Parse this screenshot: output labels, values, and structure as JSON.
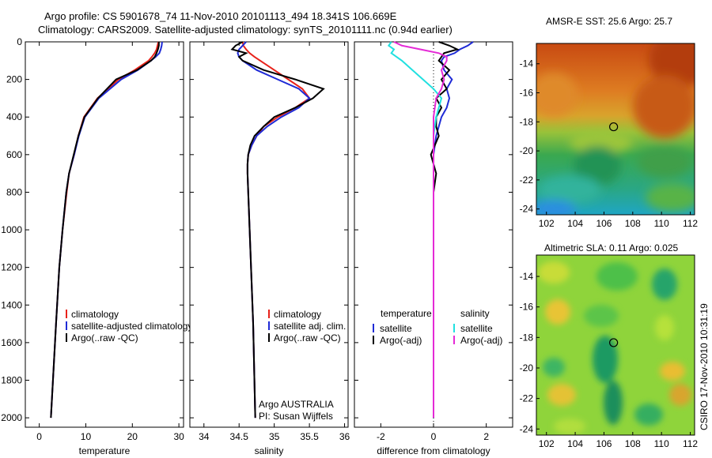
{
  "header": {
    "title_line1": "Argo profile: CS 5901678_74 11-Nov-2010 20101113_494 18.341S 106.669E",
    "title_line2": "Climatology: CARS2009. Satellite-adjusted climatology: synTS_20101111.nc (0.94d earlier)"
  },
  "side_label": "CSIRO 17-Nov-2010 10:31:19",
  "colors": {
    "red": "#e8221a",
    "blue": "#1f2bd6",
    "black": "#000000",
    "cyan": "#21e0e0",
    "magenta": "#e52ad6"
  },
  "chart_data": [
    {
      "id": "temperature",
      "type": "line",
      "xlabel": "temperature",
      "ylabel": "",
      "xlim": [
        -3,
        31
      ],
      "ylim": [
        2050,
        0
      ],
      "xticks": [
        0,
        10,
        20,
        30
      ],
      "yticks": [
        0,
        200,
        400,
        600,
        800,
        1000,
        1200,
        1400,
        1600,
        1800,
        2000
      ],
      "depth": [
        0,
        20,
        40,
        60,
        80,
        100,
        150,
        200,
        300,
        400,
        500,
        600,
        700,
        800,
        1000,
        1200,
        1500,
        2000
      ],
      "series": [
        {
          "name": "climatology",
          "color": "red",
          "values": [
            25.6,
            25.4,
            25.2,
            24.8,
            24.2,
            23.5,
            20.5,
            17.0,
            12.5,
            9.6,
            8.4,
            7.5,
            6.4,
            5.9,
            5.0,
            4.3,
            3.6,
            2.5
          ]
        },
        {
          "name": "satellite-adjusted climatology",
          "color": "blue",
          "values": [
            26.4,
            26.3,
            26.1,
            25.8,
            25.0,
            24.0,
            21.2,
            17.6,
            12.8,
            9.8,
            8.5,
            7.5,
            6.4,
            5.8,
            5.0,
            4.3,
            3.6,
            2.5
          ]
        },
        {
          "name": "Argo(..raw -QC)",
          "color": "black",
          "values": [
            25.7,
            25.7,
            25.5,
            25.2,
            24.8,
            24.0,
            21.0,
            16.5,
            12.6,
            9.7,
            8.4,
            7.4,
            6.4,
            5.8,
            5.0,
            4.3,
            3.6,
            2.5
          ]
        }
      ]
    },
    {
      "id": "salinity",
      "type": "line",
      "xlabel": "salinity",
      "ylabel": "",
      "xlim": [
        33.8,
        36.05
      ],
      "ylim": [
        2050,
        0
      ],
      "xticks": [
        34,
        34.5,
        35,
        35.5,
        36
      ],
      "depth": [
        0,
        20,
        40,
        60,
        80,
        100,
        150,
        200,
        250,
        300,
        350,
        400,
        450,
        500,
        550,
        600,
        650,
        700,
        800,
        1000,
        1500,
        2000
      ],
      "series": [
        {
          "name": "climatology",
          "color": "red",
          "values": [
            34.55,
            34.56,
            34.6,
            34.65,
            34.72,
            34.8,
            35.0,
            35.2,
            35.4,
            35.5,
            35.3,
            35.05,
            34.85,
            34.75,
            34.68,
            34.63,
            34.62,
            34.62,
            34.63,
            34.65,
            34.7,
            34.73
          ]
        },
        {
          "name": "satellite adj. clim.",
          "color": "blue",
          "values": [
            34.6,
            34.55,
            34.5,
            34.48,
            34.5,
            34.55,
            34.75,
            35.05,
            35.35,
            35.5,
            35.35,
            35.1,
            34.9,
            34.75,
            34.68,
            34.63,
            34.62,
            34.62,
            34.63,
            34.65,
            34.7,
            34.73
          ]
        },
        {
          "name": "Argo(..raw -QC)",
          "color": "black",
          "values": [
            34.55,
            34.45,
            34.4,
            34.6,
            34.5,
            34.55,
            34.85,
            35.3,
            35.7,
            35.55,
            35.3,
            35.0,
            34.85,
            34.72,
            34.66,
            34.63,
            34.62,
            34.62,
            34.63,
            34.65,
            34.7,
            34.73
          ]
        }
      ],
      "annotations": [
        "Argo AUSTRALIA",
        "PI: Susan Wijffels"
      ]
    },
    {
      "id": "difference",
      "type": "line",
      "xlabel": "difference from climatology",
      "ylabel": "",
      "xlim": [
        -3,
        3
      ],
      "ylim": [
        2050,
        0
      ],
      "xticks": [
        -2,
        0,
        2
      ],
      "depth": [
        0,
        20,
        40,
        60,
        80,
        100,
        150,
        200,
        250,
        300,
        350,
        400,
        450,
        500,
        600,
        700,
        800,
        1000,
        1200,
        1500,
        2000
      ],
      "series": [
        {
          "name": "temperature satellite",
          "color": "blue",
          "values": [
            1.5,
            1.3,
            1.0,
            0.8,
            0.4,
            0.3,
            0.4,
            0.7,
            0.5,
            0.6,
            0.5,
            0.3,
            0.2,
            0.1,
            0.0,
            0.0,
            0.0,
            0.0,
            0.0,
            0.0,
            0.0
          ]
        },
        {
          "name": "temperature Argo(-adj)",
          "color": "black",
          "values": [
            0.2,
            0.6,
            0.9,
            0.4,
            0.3,
            0.2,
            0.6,
            0.3,
            0.5,
            0.1,
            0.3,
            0.1,
            0.1,
            0.2,
            -0.1,
            0.1,
            0.0,
            0.0,
            0.0,
            0.0,
            0.0
          ]
        },
        {
          "name": "salinity satellite",
          "color": "cyan",
          "values": [
            -1.6,
            -1.7,
            -1.5,
            -1.6,
            -1.4,
            -1.2,
            -0.8,
            -0.4,
            0.0,
            0.3,
            0.2,
            0.1,
            0.05,
            0.0,
            0.0,
            0.0,
            0.0,
            0.0,
            0.0,
            0.0,
            0.0
          ]
        },
        {
          "name": "salinity Argo(-adj)",
          "color": "magenta",
          "values": [
            -1.5,
            -1.2,
            -0.5,
            0.2,
            0.5,
            0.5,
            0.3,
            0.4,
            0.3,
            0.1,
            0.05,
            0.0,
            0.0,
            0.0,
            0.0,
            0.0,
            0.0,
            0.0,
            0.0,
            0.0,
            0.0
          ]
        }
      ],
      "legend": {
        "temperature_heading": "temperature",
        "salinity_heading": "salinity",
        "items": [
          {
            "label": "satellite",
            "color": "blue"
          },
          {
            "label": "Argo(-adj)",
            "color": "black"
          },
          {
            "label": "satellite",
            "color": "cyan"
          },
          {
            "label": "Argo(-adj)",
            "color": "magenta"
          }
        ]
      }
    },
    {
      "id": "sst_map",
      "type": "heatmap",
      "title": "AMSR-E SST: 25.6 Argo: 25.7",
      "xlim": [
        101.3,
        112.3
      ],
      "ylim": [
        -24.4,
        -12.6
      ],
      "xticks": [
        102,
        104,
        106,
        108,
        110,
        112
      ],
      "yticks": [
        -14,
        -16,
        -18,
        -20,
        -22,
        -24
      ],
      "marker": {
        "lon": 106.669,
        "lat": -18.341
      }
    },
    {
      "id": "sla_map",
      "type": "heatmap",
      "title": "Altimetric SLA: 0.11 Argo: 0.025",
      "xlim": [
        101.3,
        112.3
      ],
      "ylim": [
        -24.4,
        -12.6
      ],
      "xticks": [
        102,
        104,
        106,
        108,
        110,
        112
      ],
      "yticks": [
        -14,
        -16,
        -18,
        -20,
        -22,
        -24
      ],
      "marker": {
        "lon": 106.669,
        "lat": -18.341
      }
    }
  ]
}
